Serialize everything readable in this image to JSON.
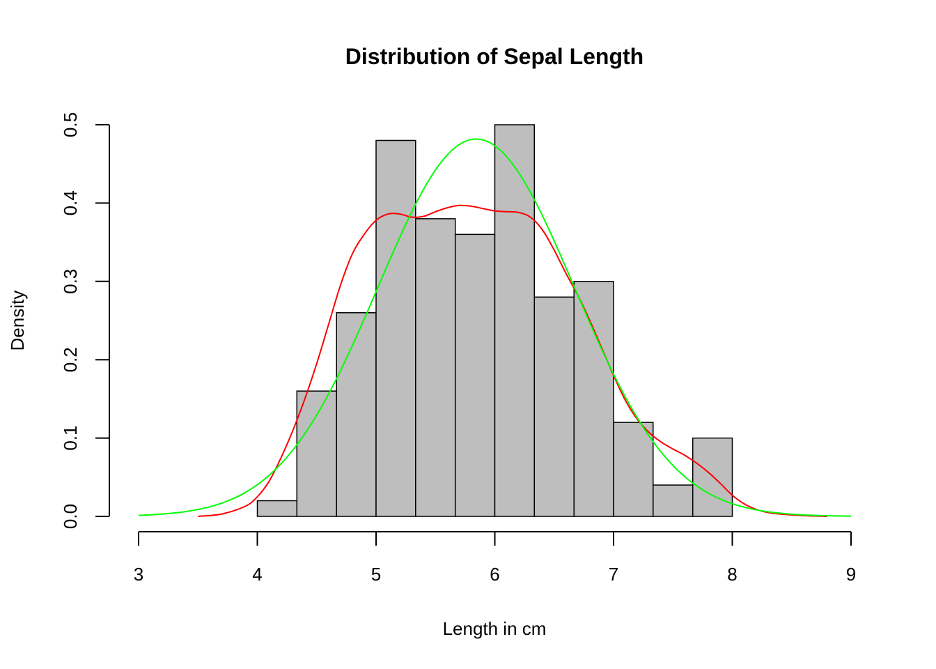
{
  "chart_data": {
    "type": "bar",
    "title": "Distribution of Sepal Length",
    "xlabel": "Length in cm",
    "ylabel": "Density",
    "xlim": [
      3,
      9
    ],
    "ylim": [
      0,
      0.5
    ],
    "x_ticks": [
      "3",
      "4",
      "5",
      "6",
      "7",
      "8",
      "9"
    ],
    "y_ticks": [
      "0.0",
      "0.1",
      "0.2",
      "0.3",
      "0.4",
      "0.5"
    ],
    "grid": false,
    "bins": [
      {
        "start": 4.0,
        "end": 4.333,
        "density": 0.02
      },
      {
        "start": 4.333,
        "end": 4.667,
        "density": 0.16
      },
      {
        "start": 4.667,
        "end": 5.0,
        "density": 0.26
      },
      {
        "start": 5.0,
        "end": 5.333,
        "density": 0.48
      },
      {
        "start": 5.333,
        "end": 5.667,
        "density": 0.38
      },
      {
        "start": 5.667,
        "end": 6.0,
        "density": 0.36
      },
      {
        "start": 6.0,
        "end": 6.333,
        "density": 0.5
      },
      {
        "start": 6.333,
        "end": 6.667,
        "density": 0.28
      },
      {
        "start": 6.667,
        "end": 7.0,
        "density": 0.3
      },
      {
        "start": 7.0,
        "end": 7.333,
        "density": 0.12
      },
      {
        "start": 7.333,
        "end": 7.667,
        "density": 0.04
      },
      {
        "start": 7.667,
        "end": 8.0,
        "density": 0.1
      }
    ],
    "bar_color": "#bebebe",
    "series": [
      {
        "kind": "kernel density",
        "color": "#ff0000",
        "points": [
          [
            3.5,
            0.0
          ],
          [
            3.7,
            0.003
          ],
          [
            3.9,
            0.013
          ],
          [
            4.0,
            0.025
          ],
          [
            4.1,
            0.045
          ],
          [
            4.2,
            0.075
          ],
          [
            4.3,
            0.11
          ],
          [
            4.4,
            0.15
          ],
          [
            4.5,
            0.195
          ],
          [
            4.6,
            0.245
          ],
          [
            4.7,
            0.295
          ],
          [
            4.8,
            0.335
          ],
          [
            4.9,
            0.36
          ],
          [
            5.0,
            0.378
          ],
          [
            5.1,
            0.386
          ],
          [
            5.2,
            0.386
          ],
          [
            5.3,
            0.382
          ],
          [
            5.4,
            0.383
          ],
          [
            5.5,
            0.389
          ],
          [
            5.6,
            0.394
          ],
          [
            5.7,
            0.397
          ],
          [
            5.8,
            0.396
          ],
          [
            5.9,
            0.393
          ],
          [
            6.0,
            0.39
          ],
          [
            6.1,
            0.389
          ],
          [
            6.2,
            0.388
          ],
          [
            6.3,
            0.382
          ],
          [
            6.4,
            0.366
          ],
          [
            6.5,
            0.34
          ],
          [
            6.6,
            0.31
          ],
          [
            6.7,
            0.282
          ],
          [
            6.8,
            0.25
          ],
          [
            6.9,
            0.215
          ],
          [
            7.0,
            0.18
          ],
          [
            7.1,
            0.148
          ],
          [
            7.2,
            0.124
          ],
          [
            7.3,
            0.107
          ],
          [
            7.4,
            0.095
          ],
          [
            7.5,
            0.086
          ],
          [
            7.6,
            0.078
          ],
          [
            7.7,
            0.068
          ],
          [
            7.8,
            0.056
          ],
          [
            7.9,
            0.042
          ],
          [
            8.0,
            0.027
          ],
          [
            8.1,
            0.016
          ],
          [
            8.2,
            0.009
          ],
          [
            8.3,
            0.005
          ],
          [
            8.4,
            0.003
          ],
          [
            8.6,
            0.001
          ],
          [
            8.8,
            0.0
          ]
        ]
      },
      {
        "kind": "normal density",
        "color": "#00ff00",
        "mean": 5.843,
        "sd": 0.828
      }
    ]
  }
}
